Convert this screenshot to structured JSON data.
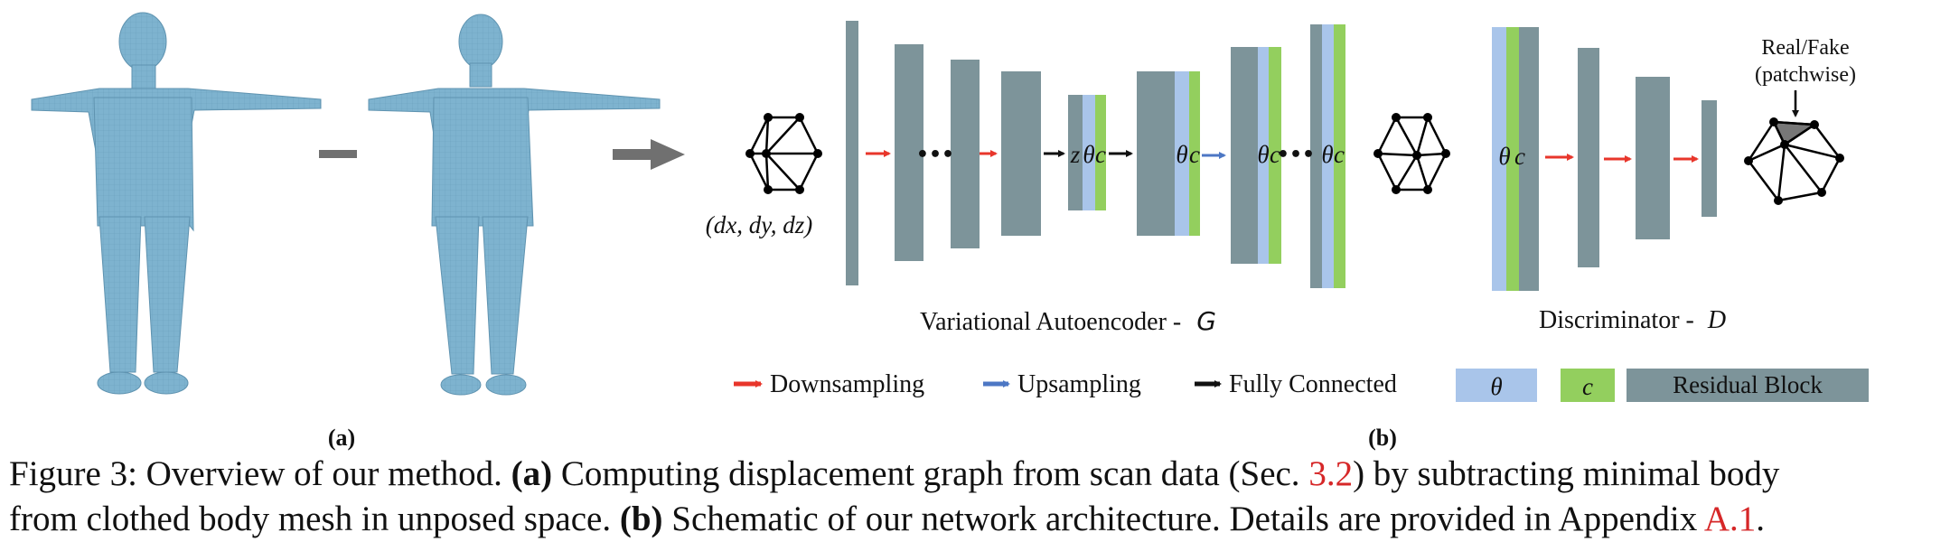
{
  "diagram": {
    "minus_sign": "minus",
    "displacement_label": "(dx, dy, dz)",
    "symbols": {
      "z": "z",
      "theta": "θ",
      "c": "c"
    },
    "vae_label": "Variational Autoencoder -",
    "vae_symbol": "G",
    "disc_label": "Discriminator -",
    "disc_symbol": "D",
    "real_fake_line1": "Real/Fake",
    "real_fake_line2": "(patchwise)",
    "ellipsis": "•••",
    "panel_a_label": "(a)",
    "panel_b_label": "(b)",
    "legend": {
      "downsampling": "Downsampling",
      "upsampling": "Upsampling",
      "fully_connected": "Fully Connected",
      "theta": "θ",
      "c": "c",
      "residual_block": "Residual Block"
    },
    "colors": {
      "body_mesh": "#7eb3cf",
      "residual_block": "#7d949a",
      "theta": "#a9c5ea",
      "c": "#93cf5e",
      "downsampling_arrow": "#e8362b",
      "upsampling_arrow": "#4d77c4",
      "fully_connected_arrow": "#111111",
      "flow_arrow": "#707070"
    }
  },
  "caption": {
    "line1_a": "Figure 3: Overview of our method.",
    "line1_bold": "(a)",
    "line1_b": "Computing displacement graph from scan data (Sec.",
    "line1_ref": "3.2",
    "line1_c": ") by subtracting minimal body",
    "line2_a": "from clothed body mesh in unposed space.",
    "line2_bold": "(b)",
    "line2_b": "Schematic of our network architecture. Details are provided in Appendix",
    "line2_ref": "A.1",
    "line2_c": "."
  }
}
